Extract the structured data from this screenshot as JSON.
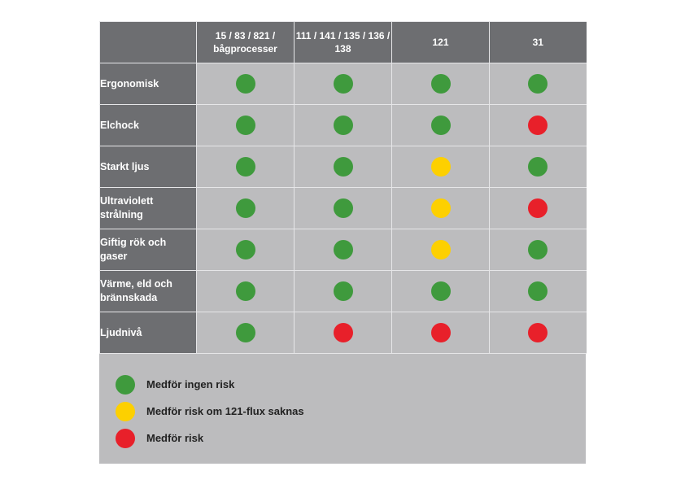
{
  "colors": {
    "green": "#3f9a3d",
    "yellow": "#fdd000",
    "red": "#e8202a",
    "header_bg": "#6d6e71",
    "cell_bg": "#bcbcbe"
  },
  "columns": [
    "15 / 83 / 821 / bågprocesser",
    "111 / 141 / 135 / 136 / 138",
    "121",
    "31"
  ],
  "rows": [
    {
      "label": "Ergonomisk",
      "ratings": [
        "green",
        "green",
        "green",
        "green"
      ]
    },
    {
      "label": "Elchock",
      "ratings": [
        "green",
        "green",
        "green",
        "red"
      ]
    },
    {
      "label": "Starkt ljus",
      "ratings": [
        "green",
        "green",
        "yellow",
        "green"
      ]
    },
    {
      "label": "Ultraviolett strålning",
      "ratings": [
        "green",
        "green",
        "yellow",
        "red"
      ]
    },
    {
      "label": "Giftig rök och gaser",
      "ratings": [
        "green",
        "green",
        "yellow",
        "green"
      ]
    },
    {
      "label": "Värme, eld och brännskada",
      "ratings": [
        "green",
        "green",
        "green",
        "green"
      ]
    },
    {
      "label": "Ljudnivå",
      "ratings": [
        "green",
        "red",
        "red",
        "red"
      ]
    }
  ],
  "legend": [
    {
      "color": "green",
      "label": "Medför ingen risk"
    },
    {
      "color": "yellow",
      "label": "Medför risk om 121-flux saknas"
    },
    {
      "color": "red",
      "label": "Medför risk"
    }
  ]
}
